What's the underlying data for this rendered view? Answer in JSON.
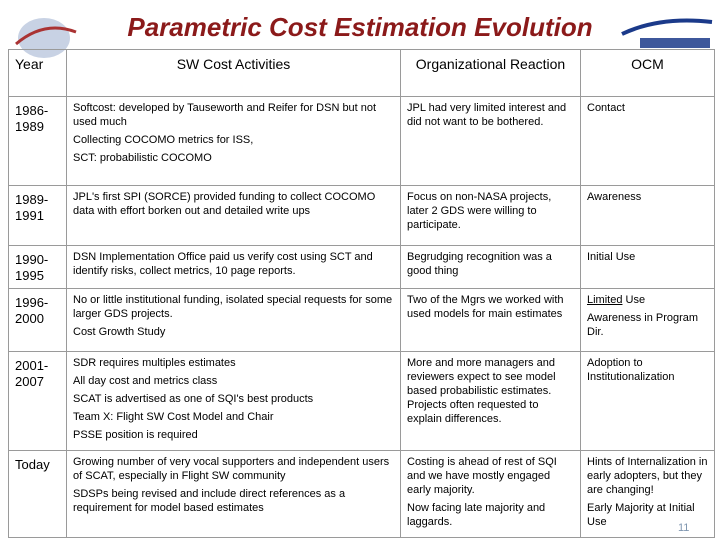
{
  "title": "Parametric Cost Estimation Evolution",
  "page_number": "11",
  "table": {
    "headers": [
      "Year",
      "SW Cost Activities",
      "Organizational Reaction",
      "OCM"
    ],
    "rows": [
      {
        "year": "1986-1989",
        "activities": [
          "Softcost: developed by Tauseworth and Reifer for DSN but not used much",
          "Collecting COCOMO metrics for ISS,",
          "SCT: probabilistic COCOMO"
        ],
        "reaction": [
          "JPL had very limited interest and did not want to be bothered."
        ],
        "ocm": [
          "Contact"
        ]
      },
      {
        "year": "1989-1991",
        "activities": [
          "JPL's first SPI (SORCE) provided funding to collect COCOMO data with effort borken out and detailed write ups"
        ],
        "reaction": [
          "Focus on non-NASA projects, later 2 GDS were willing to participate."
        ],
        "ocm": [
          "Awareness"
        ]
      },
      {
        "year": "1990-1995",
        "activities": [
          "DSN Implementation Office  paid us verify cost using SCT and identify risks, collect metrics, 10 page reports."
        ],
        "reaction": [
          "Begrudging recognition was a good thing"
        ],
        "ocm": [
          "Initial Use"
        ]
      },
      {
        "year": "1996-2000",
        "activities": [
          "No or little institutional funding, isolated special requests for some larger GDS projects.",
          "Cost Growth Study"
        ],
        "reaction": [
          "Two of the Mgrs we worked with used models for main estimates"
        ],
        "ocm": [
          {
            "underlined": "Limited",
            "text": "Use"
          },
          "Awareness in Program Dir."
        ]
      },
      {
        "year": "2001-2007",
        "activities": [
          "SDR requires multiples estimates",
          "All day cost and metrics class",
          "SCAT is advertised as one of SQI's best products",
          "Team X: Flight SW Cost Model and Chair",
          "PSSE position is required"
        ],
        "reaction": [
          "More and more managers and reviewers expect to see model based probabilistic estimates. Projects often requested  to explain differences."
        ],
        "ocm": [
          "Adoption to Institutionalization"
        ]
      },
      {
        "year": "Today",
        "activities": [
          "Growing number of very vocal supporters and independent users of SCAT, especially in Flight SW community",
          "SDSPs being revised and include direct references as a requirement for model based estimates"
        ],
        "reaction": [
          "Costing is ahead of rest of SQI and we have mostly engaged early majority.",
          "Now facing late majority and laggards."
        ],
        "ocm": [
          "Hints of Internalization in early adopters, but they are changing!",
          "Early Majority at Initial Use"
        ]
      }
    ]
  }
}
